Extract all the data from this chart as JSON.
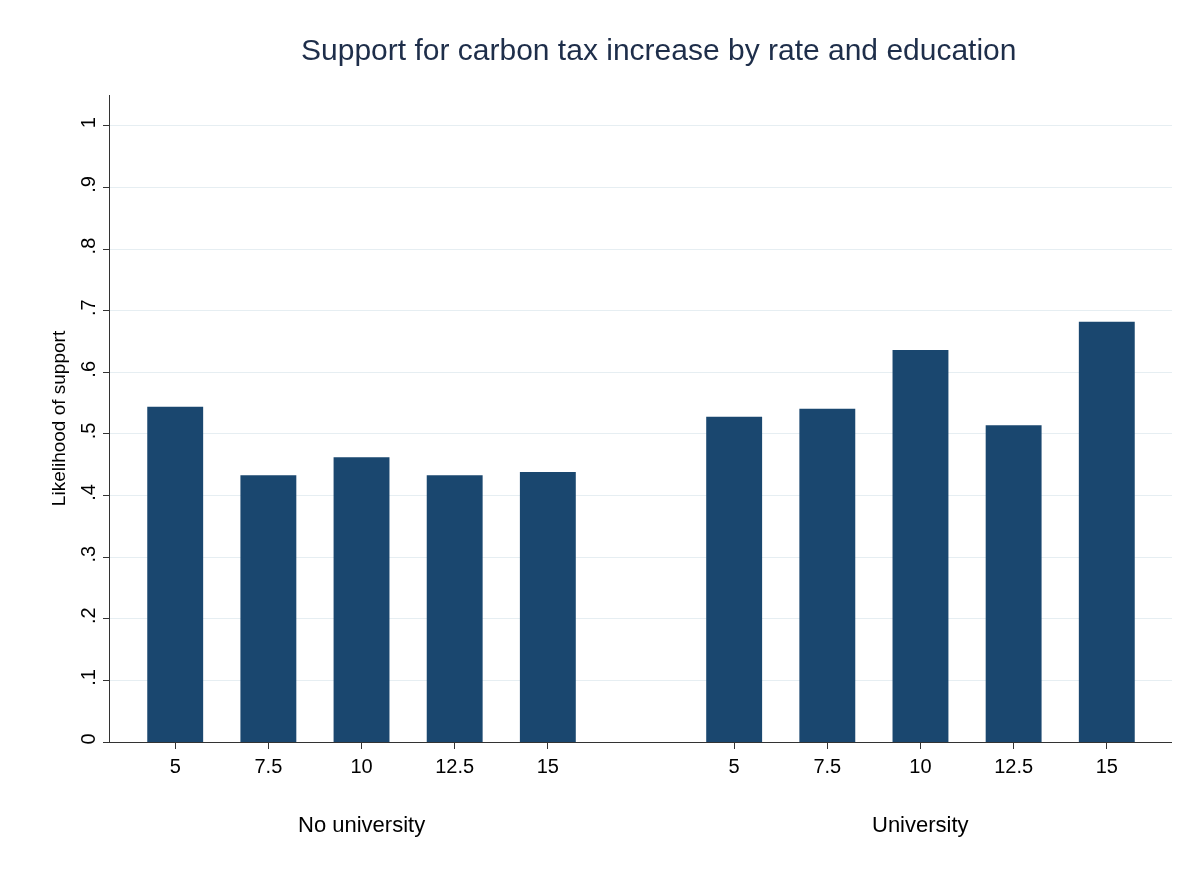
{
  "chart_data": {
    "type": "bar",
    "title": "Support for carbon tax increase by rate and education",
    "ylabel": "Likelihood of support",
    "categories": [
      "5",
      "7.5",
      "10",
      "12.5",
      "15",
      null,
      "5",
      "7.5",
      "10",
      "12.5",
      "15"
    ],
    "values": [
      0.544,
      0.433,
      0.462,
      0.433,
      0.438,
      null,
      0.528,
      0.541,
      0.636,
      0.514,
      0.682
    ],
    "color": "#1a476f",
    "ylim": [
      0,
      1.05
    ],
    "yticks": [
      0,
      {
        "value": 0.1,
        "label": ".1"
      },
      {
        "value": 0.2,
        "label": ".2"
      },
      {
        "value": 0.3,
        "label": ".3"
      },
      {
        "value": 0.4,
        "label": ".4"
      },
      {
        "value": 0.5,
        "label": ".5"
      },
      {
        "value": 0.6,
        "label": ".6"
      },
      {
        "value": 0.7,
        "label": ".7"
      },
      {
        "value": 0.8,
        "label": ".8"
      },
      {
        "value": 0.9,
        "label": ".9"
      },
      1
    ],
    "grid": "y",
    "annotations": [
      "No university",
      "University"
    ]
  }
}
